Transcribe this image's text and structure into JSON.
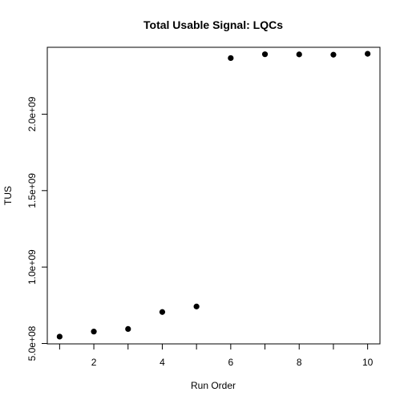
{
  "chart_data": {
    "type": "scatter",
    "title": "Total Usable Signal: LQCs",
    "xlabel": "Run Order",
    "ylabel": "TUS",
    "x": [
      1,
      2,
      3,
      4,
      5,
      6,
      7,
      8,
      9,
      10
    ],
    "y": [
      545000000,
      578000000,
      595000000,
      706000000,
      742000000,
      2367000000,
      2392000000,
      2391000000,
      2389000000,
      2395000000
    ],
    "xlim": [
      0.64,
      10.36
    ],
    "ylim": [
      497500000.0,
      2437500000.0
    ],
    "xticks": [
      2,
      4,
      6,
      8,
      10
    ],
    "xtick_labels": [
      "2",
      "4",
      "6",
      "8",
      "10"
    ],
    "yticks": [
      500000000,
      1000000000,
      1500000000,
      2000000000
    ],
    "ytick_labels": [
      "5.0e+08",
      "1.0e+09",
      "1.5e+09",
      "2.0e+09"
    ],
    "grid": false,
    "legend": "none",
    "point_color": "#000000"
  }
}
